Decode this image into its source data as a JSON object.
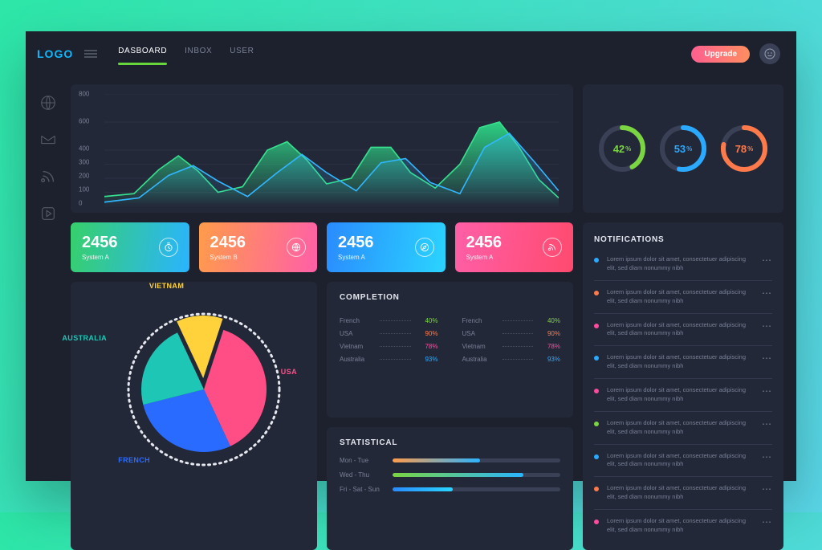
{
  "brand": {
    "logo_text": "LOGO",
    "logo_color": "#0fb8ff"
  },
  "nav": {
    "items": [
      {
        "label": "DASBOARD",
        "active": true
      },
      {
        "label": "INBOX",
        "active": false
      },
      {
        "label": "USER",
        "active": false
      }
    ],
    "upgrade_label": "Upgrade",
    "upgrade_gradient": [
      "#ff5f8f",
      "#ff8e5f"
    ]
  },
  "rail_icons": [
    "globe-icon",
    "inbox-icon",
    "feed-icon",
    "play-icon"
  ],
  "wave_chart": {
    "type": "area",
    "ylim": [
      0,
      800
    ],
    "yticks": [
      0,
      100,
      200,
      300,
      400,
      600,
      800
    ],
    "grid_color": "#343a4e",
    "series": [
      {
        "stroke": "#36e08e",
        "fill_from": "#2ccf83",
        "fill_to": "rgba(44,207,131,0)",
        "points": [
          0,
          70,
          60,
          90,
          110,
          260,
          150,
          360,
          190,
          250,
          230,
          100,
          280,
          140,
          330,
          400,
          370,
          460,
          410,
          330,
          450,
          160,
          500,
          200,
          540,
          420,
          580,
          420,
          620,
          240,
          670,
          130,
          720,
          300,
          760,
          560,
          800,
          600,
          840,
          420,
          880,
          190,
          920,
          60
        ]
      },
      {
        "stroke": "#32b7ff",
        "fill_from": "rgba(50,183,255,.35)",
        "fill_to": "rgba(50,183,255,0)",
        "points": [
          0,
          30,
          70,
          60,
          130,
          220,
          180,
          290,
          230,
          180,
          290,
          70,
          350,
          240,
          400,
          370,
          450,
          240,
          510,
          110,
          560,
          310,
          610,
          340,
          660,
          170,
          720,
          90,
          770,
          420,
          820,
          520,
          870,
          320,
          920,
          110
        ]
      }
    ]
  },
  "gauges": [
    {
      "value": 42,
      "color": "#7bd441",
      "track": "#3a4055"
    },
    {
      "value": 53,
      "color": "#2aa9ff",
      "track": "#3a4055"
    },
    {
      "value": 78,
      "color": "#ff7a4a",
      "track": "#3a4055"
    }
  ],
  "stat_cards": [
    {
      "value": "2456",
      "label": "System A",
      "icon": "timer-icon",
      "gradient": [
        "#37d06a",
        "#2ab4ff"
      ]
    },
    {
      "value": "2456",
      "label": "System B",
      "icon": "globe-icon",
      "gradient": [
        "#ff9c4a",
        "#ff5fa8"
      ]
    },
    {
      "value": "2456",
      "label": "System A",
      "icon": "compass-icon",
      "gradient": [
        "#2a8bff",
        "#2ad4ff"
      ]
    },
    {
      "value": "2456",
      "label": "System A",
      "icon": "feed-icon",
      "gradient": [
        "#ff5fa8",
        "#ff4a6e"
      ]
    }
  ],
  "notifications": {
    "title": "NOTIFICATIONS",
    "item_text": "Lorem ipsum dolor sit amet, consectetuer adipiscing elit, sed diam nonummy nibh",
    "dot_colors": [
      "#2aa9ff",
      "#ff7a4a",
      "#ff4aa0",
      "#2aa9ff",
      "#ff4aa0",
      "#7bd441",
      "#2aa9ff",
      "#ff7a4a",
      "#ff4aa0"
    ]
  },
  "pie": {
    "type": "pie",
    "radius": 78,
    "exploded_index": 0,
    "dotted_ring_color": "#e6e8ef",
    "slices": [
      {
        "label": "VIETNAM",
        "value": 12,
        "color": "#ffd23b",
        "label_color": "#ffd23b"
      },
      {
        "label": "USA",
        "value": 38,
        "color": "#ff4e86",
        "label_color": "#ff4e86"
      },
      {
        "label": "FRENCH",
        "value": 28,
        "color": "#2a6bff",
        "label_color": "#2a6bff"
      },
      {
        "label": "AUSTRALIA",
        "value": 22,
        "color": "#1ec6b6",
        "label_color": "#1ec6b6"
      }
    ]
  },
  "completion": {
    "title": "COMPLETION",
    "columns": [
      [
        {
          "label": "French",
          "pct": 40,
          "color": "#7bd441"
        },
        {
          "label": "USA",
          "pct": 90,
          "color": "#ff7a4a"
        },
        {
          "label": "Vietnam",
          "pct": 78,
          "color": "#ff4aa0"
        },
        {
          "label": "Australia",
          "pct": 93,
          "color": "#2aa9ff"
        }
      ],
      [
        {
          "label": "French",
          "pct": 40,
          "color": "#7bd441"
        },
        {
          "label": "USA",
          "pct": 90,
          "color": "#ff7a4a"
        },
        {
          "label": "Vietnam",
          "pct": 78,
          "color": "#ff4aa0"
        },
        {
          "label": "Australia",
          "pct": 93,
          "color": "#2aa9ff"
        }
      ]
    ]
  },
  "statistical": {
    "title": "STATISTICAL",
    "rows": [
      {
        "label": "Mon - Tue",
        "pct": 52,
        "gradient": [
          "#ff9c4a",
          "#2ab4ff"
        ]
      },
      {
        "label": "Wed - Thu",
        "pct": 78,
        "gradient": [
          "#7bd441",
          "#2ab4ff"
        ]
      },
      {
        "label": "Fri - Sat - Sun",
        "pct": 36,
        "gradient": [
          "#2a8bff",
          "#2ad4ff"
        ]
      }
    ]
  }
}
